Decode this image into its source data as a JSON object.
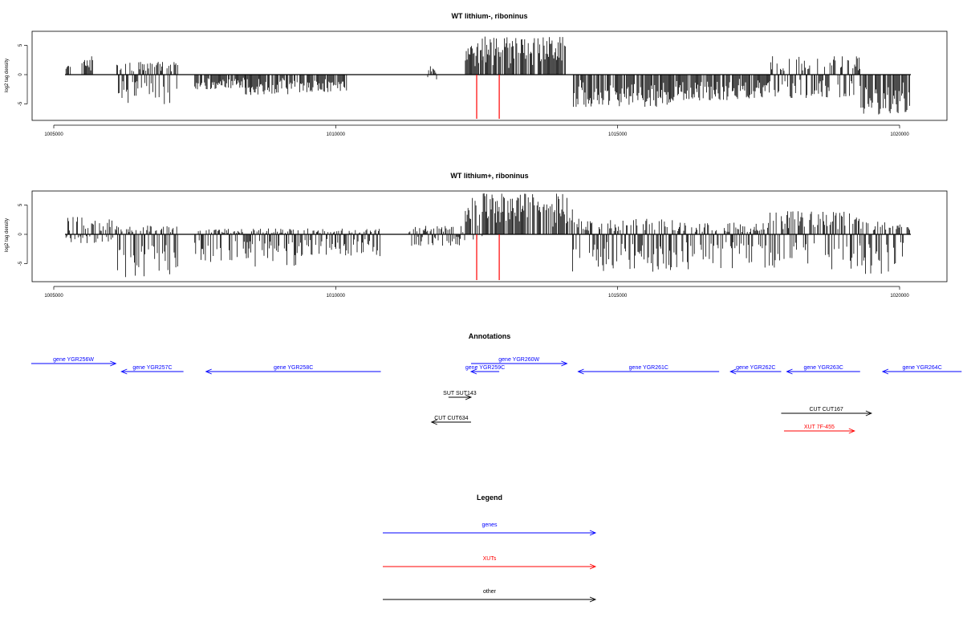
{
  "chart_data": [
    {
      "type": "bar",
      "title": "WT lithium-, riboninus",
      "ylabel": "log2 tag density",
      "xlim": [
        1005000,
        1020000
      ],
      "xticks": [
        1005000,
        1010000,
        1015000,
        1020000
      ],
      "ylim": [
        -7.5,
        7.5
      ],
      "yticks": [
        -5,
        0,
        5
      ],
      "data_range": [
        1005200,
        1020200
      ],
      "markers": [
        1012500,
        1012900
      ],
      "marker_color": "#ff0000",
      "segments": [
        {
          "start": 1005200,
          "end": 1005300,
          "max": 1.5,
          "min": 0
        },
        {
          "start": 1005500,
          "end": 1005700,
          "max": 3.2,
          "min": 0
        },
        {
          "start": 1006100,
          "end": 1007200,
          "max": 2.2,
          "min": -5.2
        },
        {
          "start": 1007500,
          "end": 1008400,
          "max": 0.5,
          "min": -2.5
        },
        {
          "start": 1008400,
          "end": 1009300,
          "max": 0.3,
          "min": -3.5
        },
        {
          "start": 1009300,
          "end": 1010200,
          "max": 0.5,
          "min": -3.0
        },
        {
          "start": 1011600,
          "end": 1011800,
          "max": 1.5,
          "min": -1.5
        },
        {
          "start": 1012300,
          "end": 1012600,
          "max": 5.5,
          "min": 0
        },
        {
          "start": 1012600,
          "end": 1014100,
          "max": 6.5,
          "min": 0
        },
        {
          "start": 1014200,
          "end": 1016000,
          "max": 0.5,
          "min": -5.5
        },
        {
          "start": 1016000,
          "end": 1017700,
          "max": 0.5,
          "min": -4.5
        },
        {
          "start": 1017700,
          "end": 1019300,
          "max": 3.2,
          "min": -4.0
        },
        {
          "start": 1019300,
          "end": 1020200,
          "max": 0.3,
          "min": -6.8
        }
      ]
    },
    {
      "type": "bar",
      "title": "WT lithium+, riboninus",
      "ylabel": "log2 tag density",
      "xlim": [
        1005000,
        1020000
      ],
      "xticks": [
        1005000,
        1010000,
        1015000,
        1020000
      ],
      "ylim": [
        -7.5,
        7.5
      ],
      "yticks": [
        -5,
        0,
        5
      ],
      "data_range": [
        1005200,
        1020200
      ],
      "markers": [
        1012500,
        1012900
      ],
      "marker_color": "#ff0000",
      "segments": [
        {
          "start": 1005200,
          "end": 1006100,
          "max": 3.0,
          "min": -1.5
        },
        {
          "start": 1006100,
          "end": 1007200,
          "max": 1.5,
          "min": -7.5
        },
        {
          "start": 1007500,
          "end": 1008400,
          "max": 1.0,
          "min": -5.0
        },
        {
          "start": 1008400,
          "end": 1009300,
          "max": 1.0,
          "min": -5.5
        },
        {
          "start": 1009300,
          "end": 1010800,
          "max": 1.0,
          "min": -4.0
        },
        {
          "start": 1011300,
          "end": 1012300,
          "max": 1.5,
          "min": -2.0
        },
        {
          "start": 1012300,
          "end": 1012600,
          "max": 6.5,
          "min": -1.0
        },
        {
          "start": 1012600,
          "end": 1014200,
          "max": 7.0,
          "min": 0
        },
        {
          "start": 1014200,
          "end": 1016000,
          "max": 2.7,
          "min": -6.5
        },
        {
          "start": 1016000,
          "end": 1017700,
          "max": 2.0,
          "min": -6.0
        },
        {
          "start": 1017700,
          "end": 1019300,
          "max": 4.0,
          "min": -6.0
        },
        {
          "start": 1019300,
          "end": 1020200,
          "max": 2.5,
          "min": -6.8
        }
      ]
    }
  ],
  "annotations": {
    "title": "Annotations",
    "xlim": [
      1005000,
      1020000
    ],
    "features": [
      {
        "label": "gene YGR256W",
        "start": 1004600,
        "end": 1006100,
        "strand": "+",
        "row": 1,
        "color": "#0000ff"
      },
      {
        "label": "gene YGR257C",
        "start": 1006200,
        "end": 1007300,
        "strand": "-",
        "row": 2,
        "color": "#0000ff"
      },
      {
        "label": "gene YGR258C",
        "start": 1007700,
        "end": 1010800,
        "strand": "-",
        "row": 2,
        "color": "#0000ff"
      },
      {
        "label": "gene YGR259C",
        "start": 1012400,
        "end": 1012900,
        "strand": "-",
        "row": 2,
        "color": "#0000ff"
      },
      {
        "label": "gene YGR260W",
        "start": 1012400,
        "end": 1014100,
        "strand": "+",
        "row": 1,
        "color": "#0000ff"
      },
      {
        "label": "gene YGR261C",
        "start": 1014300,
        "end": 1016800,
        "strand": "-",
        "row": 2,
        "color": "#0000ff"
      },
      {
        "label": "gene YGR262C",
        "start": 1017000,
        "end": 1017900,
        "strand": "-",
        "row": 2,
        "color": "#0000ff"
      },
      {
        "label": "gene YGR263C",
        "start": 1018000,
        "end": 1019300,
        "strand": "-",
        "row": 2,
        "color": "#0000ff"
      },
      {
        "label": "gene YGR264C",
        "start": 1019700,
        "end": 1021100,
        "strand": "-",
        "row": 2,
        "color": "#0000ff"
      },
      {
        "label": "SUT SUT143",
        "start": 1012000,
        "end": 1012400,
        "strand": "+",
        "row": 3,
        "color": "#000000"
      },
      {
        "label": "CUT CUT634",
        "start": 1011700,
        "end": 1012400,
        "strand": "-",
        "row": 5,
        "color": "#000000"
      },
      {
        "label": "CUT CUT167",
        "start": 1017900,
        "end": 1019500,
        "strand": "+",
        "row": 4,
        "color": "#000000"
      },
      {
        "label": "XUT 7F-455",
        "start": 1017950,
        "end": 1019200,
        "strand": "+",
        "row": 6,
        "color": "#ff0000"
      }
    ]
  },
  "legend": {
    "title": "Legend",
    "items": [
      {
        "label": "genes",
        "color": "#0000ff"
      },
      {
        "label": "XUTs",
        "color": "#ff0000"
      },
      {
        "label": "other",
        "color": "#000000"
      }
    ]
  }
}
